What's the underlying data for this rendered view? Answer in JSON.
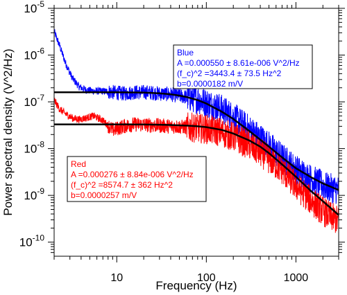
{
  "chart_data": {
    "type": "line",
    "xlabel": "Frequency (Hz)",
    "ylabel": "Power spectral density (V^2/Hz)",
    "x_scale": "log",
    "y_scale": "log",
    "xlim": [
      2,
      3000
    ],
    "ylim": [
      5e-11,
      1e-05
    ],
    "x_ticks": [
      {
        "value": 10,
        "label": "10"
      },
      {
        "value": 100,
        "label": "100"
      },
      {
        "value": 1000,
        "label": "1000"
      }
    ],
    "y_ticks": [
      {
        "value": 1e-05,
        "mant": "10",
        "exp": "-5"
      },
      {
        "value": 1e-06,
        "mant": "10",
        "exp": "-6"
      },
      {
        "value": 1e-07,
        "mant": "10",
        "exp": "-7"
      },
      {
        "value": 1e-08,
        "mant": "10",
        "exp": "-8"
      },
      {
        "value": 1e-09,
        "mant": "10",
        "exp": "-9"
      },
      {
        "value": 1e-10,
        "mant": "10",
        "exp": "-10"
      }
    ],
    "grid": false,
    "series": [
      {
        "name": "Blue",
        "color": "#0000ff",
        "kind": "psd",
        "x": [
          2,
          2.3,
          2.7,
          3.2,
          3.8,
          4.5,
          5.5,
          7,
          9,
          12,
          16,
          22,
          30,
          40,
          55,
          75,
          100,
          140,
          200,
          300,
          450,
          700,
          1000,
          1500,
          2200,
          3000
        ],
        "y": [
          3.2e-06,
          1.6e-06,
          6.5e-07,
          3.2e-07,
          2.1e-07,
          1.8e-07,
          1.7e-07,
          1.7e-07,
          1.6e-07,
          1.5e-07,
          1.6e-07,
          1.6e-07,
          1.5e-07,
          1.45e-07,
          1.3e-07,
          1.2e-07,
          9.5e-08,
          7.5e-08,
          4.8e-08,
          2.6e-08,
          1.4e-08,
          6.5e-09,
          3.6e-09,
          2.2e-09,
          1.5e-09,
          1.3e-09
        ]
      },
      {
        "name": "Red",
        "color": "#ff0000",
        "kind": "psd",
        "x": [
          2,
          2.3,
          2.7,
          3.2,
          3.8,
          4.5,
          5.5,
          7,
          9,
          12,
          16,
          22,
          30,
          40,
          55,
          75,
          100,
          140,
          200,
          300,
          450,
          700,
          1000,
          1500,
          2200,
          3000
        ],
        "y": [
          1.1e-07,
          7e-08,
          5.5e-08,
          4.5e-08,
          4.2e-08,
          4.5e-08,
          5e-08,
          4e-08,
          2.5e-08,
          3e-08,
          3.3e-08,
          3.2e-08,
          3.1e-08,
          3e-08,
          2.9e-08,
          2.8e-08,
          2.6e-08,
          2.3e-08,
          1.8e-08,
          1.2e-08,
          7e-09,
          3.5e-09,
          1.6e-09,
          7.5e-10,
          4e-10,
          2.8e-10
        ]
      },
      {
        "name": "Blue fit",
        "color": "#000000",
        "kind": "fit",
        "x": [
          2,
          5,
          10,
          20,
          30,
          40,
          50,
          60,
          80,
          100,
          150,
          200,
          300,
          400,
          500,
          700,
          1000,
          1500,
          2000,
          3000
        ],
        "y": [
          1.6e-07,
          1.6e-07,
          1.6e-07,
          1.58e-07,
          1.52e-07,
          1.45e-07,
          1.36e-07,
          1.27e-07,
          1.09e-07,
          9.2e-08,
          6.1e-08,
          4.3e-08,
          2.4e-08,
          1.55e-08,
          1.1e-08,
          6.5e-09,
          3.8e-09,
          2.4e-09,
          1.8e-09,
          1.3e-09
        ]
      },
      {
        "name": "Red fit",
        "color": "#000000",
        "kind": "fit",
        "x": [
          2,
          5,
          10,
          20,
          30,
          40,
          60,
          80,
          100,
          150,
          200,
          300,
          400,
          500,
          700,
          1000,
          1500,
          2000,
          3000
        ],
        "y": [
          3.3e-08,
          3.3e-08,
          3.3e-08,
          3.28e-08,
          3.24e-08,
          3.2e-08,
          3.1e-08,
          3e-08,
          2.88e-08,
          2.5e-08,
          2.1e-08,
          1.5e-08,
          1.1e-08,
          8e-09,
          4.6e-09,
          2.5e-09,
          1.2e-09,
          7.5e-10,
          3.8e-10
        ]
      }
    ],
    "annotations": [
      {
        "id": "blue",
        "color": "#0000ff",
        "lines": [
          "Blue",
          "A =0.000550 ± 8.61e-006 V^2/Hz",
          "(f_c)^2 =3443.4 ± 73.5 Hz^2",
          "b=0.0000182 m/V"
        ]
      },
      {
        "id": "red",
        "color": "#ff0000",
        "lines": [
          "Red",
          "A =0.000276 ± 8.84e-006 V^2/Hz",
          "(f_c)^2 =8574.7 ± 362 Hz^2",
          "b=0.0000257 m/V"
        ]
      }
    ]
  }
}
